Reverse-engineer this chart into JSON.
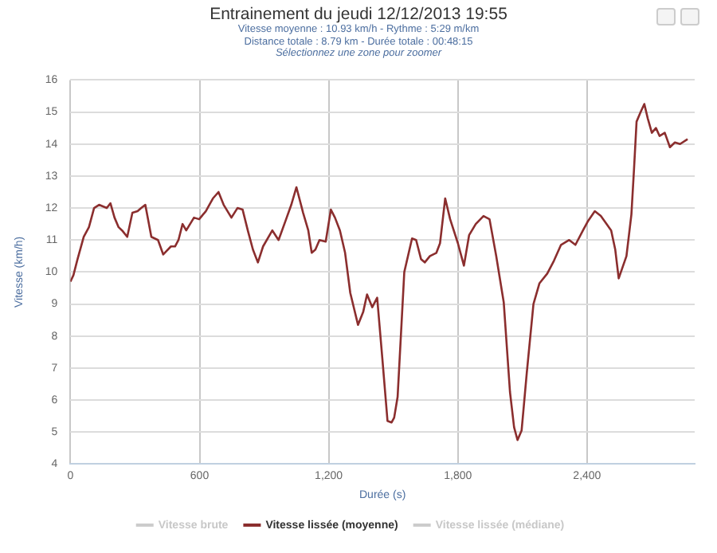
{
  "chart_data": {
    "type": "line",
    "title": "Entrainement du jeudi 12/12/2013 19:55",
    "subtitle": "Vitesse moyenne : 10.93 km/h - Rythme : 5:29 m/km\nDistance totale : 8.79 km - Durée totale : 00:48:15",
    "annotations": [
      "Sélectionnez une zone pour zoomer"
    ],
    "xlabel": "Durée (s)",
    "ylabel": "Vitesse (km/h)",
    "xlim": [
      0,
      2900
    ],
    "xticks": [
      0,
      600,
      {
        "value": 1200,
        "label": "1,200"
      },
      {
        "value": 1800,
        "label": "1,800"
      },
      {
        "value": 2400,
        "label": "2,400"
      }
    ],
    "ylim": [
      4,
      16
    ],
    "yticks": [
      4,
      5,
      6,
      7,
      8,
      9,
      10,
      11,
      12,
      13,
      14,
      15,
      16
    ],
    "grid": true,
    "legend": "bottom",
    "marker": "none",
    "line_style": "solid",
    "series": [
      {
        "name": "Vitesse brute",
        "color": "#cccccc"
      },
      {
        "name": "Vitesse lissée (moyenne)",
        "color": "#8b2e2e",
        "x": [
          0,
          14,
          33,
          62,
          86,
          110,
          133,
          169,
          186,
          205,
          224,
          240,
          264,
          288,
          312,
          329,
          348,
          376,
          407,
          431,
          467,
          486,
          502,
          521,
          538,
          574,
          598,
          629,
          662,
          688,
          712,
          748,
          776,
          800,
          824,
          848,
          871,
          895,
          938,
          967,
          1002,
          1026,
          1050,
          1081,
          1105,
          1121,
          1138,
          1157,
          1186,
          1210,
          1229,
          1252,
          1276,
          1300,
          1336,
          1360,
          1378,
          1402,
          1425,
          1449,
          1473,
          1492,
          1504,
          1520,
          1551,
          1587,
          1606,
          1629,
          1646,
          1670,
          1700,
          1717,
          1741,
          1764,
          1800,
          1828,
          1852,
          1883,
          1919,
          1947,
          1978,
          2013,
          2042,
          2061,
          2077,
          2096,
          2120,
          2151,
          2179,
          2215,
          2246,
          2279,
          2317,
          2346,
          2381,
          2405,
          2436,
          2464,
          2512,
          2531,
          2547,
          2583,
          2606,
          2618,
          2630,
          2649,
          2666,
          2682,
          2701,
          2720,
          2737,
          2761,
          2785,
          2808,
          2832,
          2867
        ],
        "values": [
          9.7,
          9.9,
          10.4,
          11.1,
          11.4,
          12.0,
          12.1,
          12.0,
          12.15,
          11.7,
          11.4,
          11.3,
          11.1,
          11.85,
          11.9,
          12.0,
          12.1,
          11.1,
          11.0,
          10.55,
          10.8,
          10.8,
          11.0,
          11.5,
          11.3,
          11.7,
          11.65,
          11.9,
          12.3,
          12.5,
          12.1,
          11.7,
          12.0,
          11.95,
          11.3,
          10.7,
          10.3,
          10.8,
          11.3,
          11.0,
          11.65,
          12.1,
          12.65,
          11.85,
          11.3,
          10.6,
          10.7,
          11.0,
          10.95,
          11.95,
          11.7,
          11.3,
          10.6,
          9.35,
          8.35,
          8.75,
          9.3,
          8.9,
          9.2,
          7.3,
          5.35,
          5.3,
          5.45,
          6.1,
          10.0,
          11.05,
          11.0,
          10.4,
          10.3,
          10.5,
          10.6,
          10.9,
          12.3,
          11.65,
          10.9,
          10.2,
          11.15,
          11.5,
          11.75,
          11.65,
          10.5,
          9.05,
          6.25,
          5.15,
          4.75,
          5.05,
          6.85,
          9.0,
          9.65,
          9.95,
          10.35,
          10.85,
          11.0,
          10.85,
          11.3,
          11.6,
          11.9,
          11.75,
          11.3,
          10.7,
          9.8,
          10.5,
          11.8,
          13.2,
          14.7,
          15.0,
          15.25,
          14.8,
          14.35,
          14.5,
          14.25,
          14.35,
          13.9,
          14.05,
          14.0,
          14.15
        ]
      },
      {
        "name": "Vitesse lissée (médiane)",
        "color": "#cccccc"
      }
    ]
  }
}
